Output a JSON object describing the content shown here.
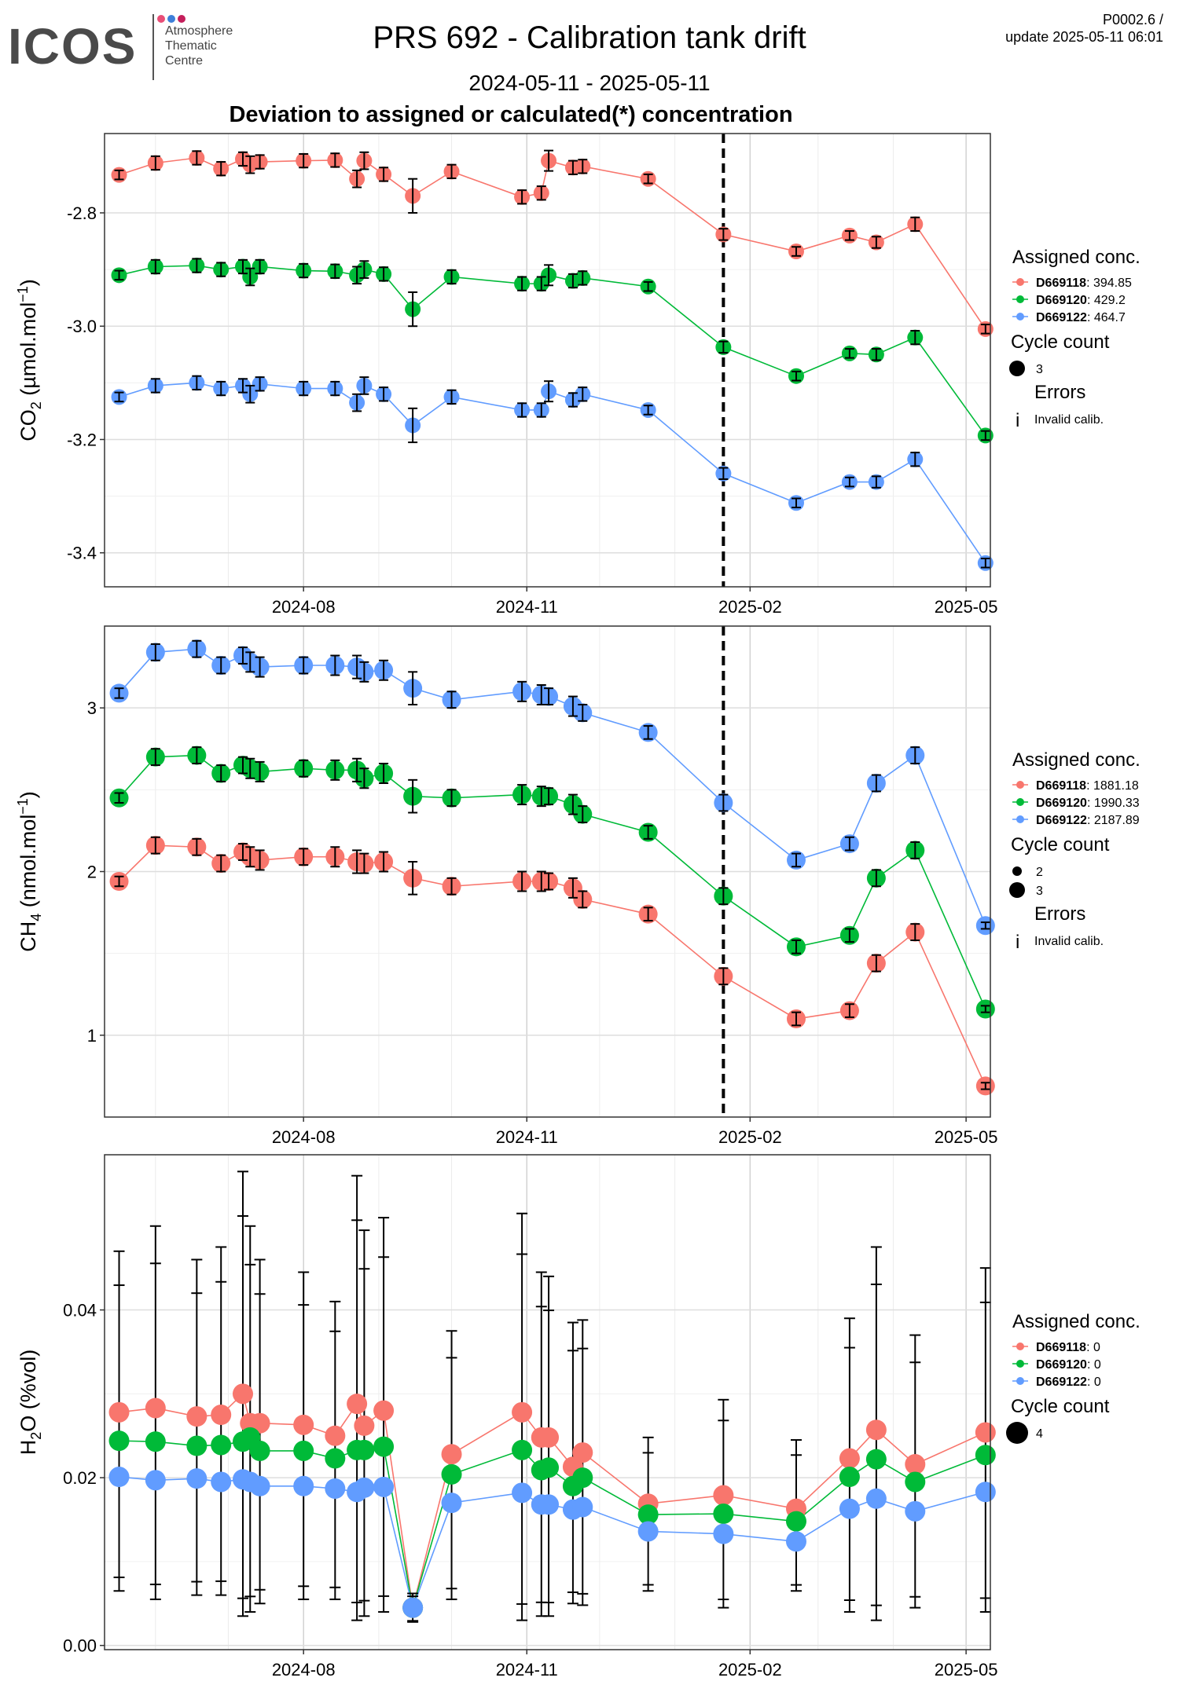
{
  "header": {
    "logo": "ICOS",
    "logo_sub": [
      "Atmosphere",
      "Thematic",
      "Centre"
    ],
    "title": "PRS 692 - Calibration tank drift",
    "subtitle": "2024-05-11 - 2025-05-11",
    "panel_title": "Deviation to assigned or calculated(*) concentration",
    "version_line1": "P0002.6 /",
    "version_line2": "update  2025-05-11 06:01"
  },
  "colors": {
    "red": "#F8766D",
    "green": "#00BA38",
    "blue": "#619CFF",
    "logo_dots": [
      "#e94e77",
      "#3d7fd9",
      "#c41e5b"
    ]
  },
  "legends": [
    {
      "assigned_title": "Assigned conc.",
      "items": [
        {
          "tank": "D669118",
          "value": ": 394.85"
        },
        {
          "tank": "D669120",
          "value": ": 429.2"
        },
        {
          "tank": "D669122",
          "value": ": 464.7"
        }
      ],
      "cycle_title": "Cycle count",
      "cycle_items": [
        "3"
      ],
      "errors_title": "Errors",
      "errors_glyph": "i",
      "errors_item": "Invalid calib."
    },
    {
      "assigned_title": "Assigned conc.",
      "items": [
        {
          "tank": "D669118",
          "value": ": 1881.18"
        },
        {
          "tank": "D669120",
          "value": ": 1990.33"
        },
        {
          "tank": "D669122",
          "value": ": 2187.89"
        }
      ],
      "cycle_title": "Cycle count",
      "cycle_items": [
        "2",
        "3"
      ],
      "errors_title": "Errors",
      "errors_glyph": "i",
      "errors_item": "Invalid calib."
    },
    {
      "assigned_title": "Assigned conc.",
      "items": [
        {
          "tank": "D669118",
          "value": ": 0"
        },
        {
          "tank": "D669120",
          "value": ": 0"
        },
        {
          "tank": "D669122",
          "value": ": 0"
        }
      ],
      "cycle_title": "Cycle count",
      "cycle_items": [
        "4"
      ]
    }
  ],
  "chart_data": [
    {
      "type": "line",
      "ylabel_main": "CO",
      "ylabel_sub": "2",
      "ylabel_rest": " (µmol.mol",
      "ylabel_sup": "−1",
      "ylabel_end": ")",
      "xlim": [
        "2024-05-11",
        "2025-05-11"
      ],
      "ylim": [
        -3.46,
        -2.66
      ],
      "xticks": [
        "2024-08-01",
        "2024-11-01",
        "2025-02-01",
        "2025-05-01"
      ],
      "xtick_labels": [
        "2024-08",
        "2024-11",
        "2025-02",
        "2025-05"
      ],
      "yticks": [
        -3.4,
        -3.2,
        -3.0,
        -2.8
      ],
      "ytick_labels": [
        "-3.4",
        "-3.2",
        "-3.0",
        "-2.8"
      ],
      "vline": "2025-01-21",
      "dates": [
        "2024-05-17",
        "2024-06-01",
        "2024-06-18",
        "2024-06-28",
        "2024-07-07",
        "2024-07-10",
        "2024-07-14",
        "2024-08-01",
        "2024-08-14",
        "2024-08-23",
        "2024-08-26",
        "2024-09-03",
        "2024-09-15",
        "2024-10-01",
        "2024-10-30",
        "2024-11-07",
        "2024-11-10",
        "2024-11-20",
        "2024-11-24",
        "2024-12-21",
        "2025-01-21",
        "2025-02-20",
        "2025-03-14",
        "2025-03-25",
        "2025-04-10",
        "2025-05-09"
      ],
      "series": [
        {
          "name": "D669118",
          "color": "red",
          "values": [
            -2.733,
            -2.712,
            -2.703,
            -2.722,
            -2.705,
            -2.715,
            -2.71,
            -2.708,
            -2.707,
            -2.74,
            -2.708,
            -2.732,
            -2.77,
            -2.727,
            -2.772,
            -2.765,
            -2.708,
            -2.72,
            -2.718,
            -2.74,
            -2.838,
            -2.868,
            -2.84,
            -2.852,
            -2.82,
            -3.005
          ]
        },
        {
          "name": "D669120",
          "color": "green",
          "values": [
            -2.91,
            -2.895,
            -2.893,
            -2.9,
            -2.895,
            -2.913,
            -2.895,
            -2.902,
            -2.903,
            -2.91,
            -2.9,
            -2.908,
            -2.97,
            -2.913,
            -2.925,
            -2.925,
            -2.91,
            -2.92,
            -2.915,
            -2.93,
            -3.037,
            -3.088,
            -3.048,
            -3.05,
            -3.02,
            -3.193
          ]
        },
        {
          "name": "D669122",
          "color": "blue",
          "values": [
            -3.125,
            -3.105,
            -3.1,
            -3.11,
            -3.105,
            -3.12,
            -3.102,
            -3.11,
            -3.11,
            -3.135,
            -3.105,
            -3.12,
            -3.175,
            -3.125,
            -3.148,
            -3.148,
            -3.115,
            -3.13,
            -3.12,
            -3.148,
            -3.26,
            -3.312,
            -3.275,
            -3.275,
            -3.235,
            -3.418
          ]
        }
      ],
      "error": [
        0.008,
        0.012,
        0.012,
        0.012,
        0.012,
        0.015,
        0.012,
        0.012,
        0.012,
        0.015,
        0.015,
        0.012,
        0.03,
        0.012,
        0.012,
        0.012,
        0.018,
        0.012,
        0.012,
        0.008,
        0.01,
        0.008,
        0.008,
        0.01,
        0.012,
        0.008
      ]
    },
    {
      "type": "line",
      "ylabel_main": "CH",
      "ylabel_sub": "4",
      "ylabel_rest": " (nmol.mol",
      "ylabel_sup": "−1",
      "ylabel_end": ")",
      "xlim": [
        "2024-05-11",
        "2025-05-11"
      ],
      "ylim": [
        0.5,
        3.5
      ],
      "xticks": [
        "2024-08-01",
        "2024-11-01",
        "2025-02-01",
        "2025-05-01"
      ],
      "xtick_labels": [
        "2024-08",
        "2024-11",
        "2025-02",
        "2025-05"
      ],
      "yticks": [
        1,
        2,
        3
      ],
      "ytick_labels": [
        "1",
        "2",
        "3"
      ],
      "vline": "2025-01-21",
      "dates": [
        "2024-05-17",
        "2024-06-01",
        "2024-06-18",
        "2024-06-28",
        "2024-07-07",
        "2024-07-10",
        "2024-07-14",
        "2024-08-01",
        "2024-08-14",
        "2024-08-23",
        "2024-08-26",
        "2024-09-03",
        "2024-09-15",
        "2024-10-01",
        "2024-10-30",
        "2024-11-07",
        "2024-11-10",
        "2024-11-20",
        "2024-11-24",
        "2024-12-21",
        "2025-01-21",
        "2025-02-20",
        "2025-03-14",
        "2025-03-25",
        "2025-04-10",
        "2025-05-09"
      ],
      "series": [
        {
          "name": "D669118",
          "color": "red",
          "values": [
            1.94,
            2.16,
            2.15,
            2.05,
            2.12,
            2.09,
            2.07,
            2.09,
            2.09,
            2.06,
            2.05,
            2.06,
            1.96,
            1.91,
            1.94,
            1.94,
            1.94,
            1.9,
            1.83,
            1.74,
            1.36,
            1.1,
            1.15,
            1.44,
            1.63,
            0.69
          ]
        },
        {
          "name": "D669120",
          "color": "green",
          "values": [
            2.45,
            2.7,
            2.71,
            2.6,
            2.65,
            2.63,
            2.61,
            2.63,
            2.62,
            2.62,
            2.57,
            2.6,
            2.46,
            2.45,
            2.47,
            2.46,
            2.46,
            2.41,
            2.35,
            2.24,
            1.85,
            1.54,
            1.61,
            1.96,
            2.13,
            1.16
          ]
        },
        {
          "name": "D669122",
          "color": "blue",
          "values": [
            3.09,
            3.34,
            3.36,
            3.26,
            3.32,
            3.28,
            3.25,
            3.26,
            3.26,
            3.25,
            3.22,
            3.23,
            3.12,
            3.05,
            3.1,
            3.08,
            3.07,
            3.01,
            2.97,
            2.85,
            2.42,
            2.07,
            2.17,
            2.54,
            2.71,
            1.67
          ]
        }
      ],
      "error": [
        0.03,
        0.05,
        0.05,
        0.05,
        0.05,
        0.06,
        0.06,
        0.05,
        0.06,
        0.07,
        0.06,
        0.06,
        0.1,
        0.05,
        0.06,
        0.06,
        0.05,
        0.06,
        0.05,
        0.04,
        0.05,
        0.04,
        0.04,
        0.05,
        0.05,
        0.02
      ]
    },
    {
      "type": "line",
      "ylabel_main": "H",
      "ylabel_sub": "2",
      "ylabel_rest": "O (%vol)",
      "ylabel_sup": "",
      "ylabel_end": "",
      "xlim": [
        "2024-05-11",
        "2025-05-11"
      ],
      "ylim": [
        -0.0005,
        0.0585
      ],
      "xticks": [
        "2024-08-01",
        "2024-11-01",
        "2025-02-01",
        "2025-05-01"
      ],
      "xtick_labels": [
        "2024-08",
        "2024-11",
        "2025-02",
        "2025-05"
      ],
      "yticks": [
        0.0,
        0.02,
        0.04
      ],
      "ytick_labels": [
        "0.00",
        "0.02",
        "0.04"
      ],
      "dates": [
        "2024-05-17",
        "2024-06-01",
        "2024-06-18",
        "2024-06-28",
        "2024-07-07",
        "2024-07-10",
        "2024-07-14",
        "2024-08-01",
        "2024-08-14",
        "2024-08-23",
        "2024-08-26",
        "2024-09-03",
        "2024-09-15",
        "2024-10-01",
        "2024-10-30",
        "2024-11-07",
        "2024-11-10",
        "2024-11-20",
        "2024-11-24",
        "2024-12-21",
        "2025-01-21",
        "2025-02-20",
        "2025-03-14",
        "2025-03-25",
        "2025-04-10",
        "2025-05-09"
      ],
      "series": [
        {
          "name": "D669118",
          "color": "red",
          "values": [
            0.0278,
            0.0283,
            0.0273,
            0.0275,
            0.03,
            0.0265,
            0.0265,
            0.0263,
            0.025,
            0.0288,
            0.0262,
            0.028,
            0.0045,
            0.0228,
            0.0278,
            0.0248,
            0.0248,
            0.0213,
            0.023,
            0.0169,
            0.0179,
            0.0163,
            0.0223,
            0.0257,
            0.0216,
            0.0254
          ]
        },
        {
          "name": "D669120",
          "color": "green",
          "values": [
            0.0244,
            0.0243,
            0.0238,
            0.0239,
            0.0243,
            0.0248,
            0.0232,
            0.0232,
            0.0223,
            0.0233,
            0.0233,
            0.0237,
            0.0045,
            0.0204,
            0.0233,
            0.0209,
            0.0212,
            0.019,
            0.02,
            0.0156,
            0.0157,
            0.0148,
            0.0201,
            0.0222,
            0.0195,
            0.0227
          ]
        },
        {
          "name": "D669122",
          "color": "blue",
          "values": [
            0.0201,
            0.0197,
            0.0199,
            0.0195,
            0.0198,
            0.0195,
            0.019,
            0.019,
            0.0187,
            0.0183,
            0.0188,
            0.0189,
            0.0045,
            0.017,
            0.0182,
            0.0168,
            0.0168,
            0.0162,
            0.0165,
            0.0136,
            0.0133,
            0.0124,
            0.0163,
            0.0175,
            0.016,
            0.0183
          ]
        }
      ],
      "bars": [
        {
          "d": "2024-05-17",
          "lo": 0.0065,
          "hi": 0.047
        },
        {
          "d": "2024-06-01",
          "lo": 0.0055,
          "hi": 0.05
        },
        {
          "d": "2024-06-18",
          "lo": 0.006,
          "hi": 0.046
        },
        {
          "d": "2024-06-28",
          "lo": 0.006,
          "hi": 0.0475
        },
        {
          "d": "2024-07-07",
          "lo": 0.0035,
          "hi": 0.0565
        },
        {
          "d": "2024-07-10",
          "lo": 0.004,
          "hi": 0.05
        },
        {
          "d": "2024-07-14",
          "lo": 0.005,
          "hi": 0.046
        },
        {
          "d": "2024-08-01",
          "lo": 0.0055,
          "hi": 0.0445
        },
        {
          "d": "2024-08-14",
          "lo": 0.0055,
          "hi": 0.041
        },
        {
          "d": "2024-08-23",
          "lo": 0.003,
          "hi": 0.056
        },
        {
          "d": "2024-08-26",
          "lo": 0.0035,
          "hi": 0.0495
        },
        {
          "d": "2024-09-03",
          "lo": 0.004,
          "hi": 0.051
        },
        {
          "d": "2024-09-15",
          "lo": 0.0028,
          "hi": 0.0062
        },
        {
          "d": "2024-10-01",
          "lo": 0.0055,
          "hi": 0.0375
        },
        {
          "d": "2024-10-30",
          "lo": 0.003,
          "hi": 0.0515
        },
        {
          "d": "2024-11-07",
          "lo": 0.0035,
          "hi": 0.0445
        },
        {
          "d": "2024-11-10",
          "lo": 0.0035,
          "hi": 0.044
        },
        {
          "d": "2024-11-20",
          "lo": 0.005,
          "hi": 0.0385
        },
        {
          "d": "2024-11-24",
          "lo": 0.0048,
          "hi": 0.0388
        },
        {
          "d": "2024-12-21",
          "lo": 0.0065,
          "hi": 0.0248
        },
        {
          "d": "2025-01-21",
          "lo": 0.0045,
          "hi": 0.0293
        },
        {
          "d": "2025-02-20",
          "lo": 0.0065,
          "hi": 0.0245
        },
        {
          "d": "2025-03-14",
          "lo": 0.004,
          "hi": 0.039
        },
        {
          "d": "2025-03-25",
          "lo": 0.003,
          "hi": 0.0475
        },
        {
          "d": "2025-04-10",
          "lo": 0.0045,
          "hi": 0.037
        },
        {
          "d": "2025-05-09",
          "lo": 0.004,
          "hi": 0.045
        }
      ]
    }
  ]
}
